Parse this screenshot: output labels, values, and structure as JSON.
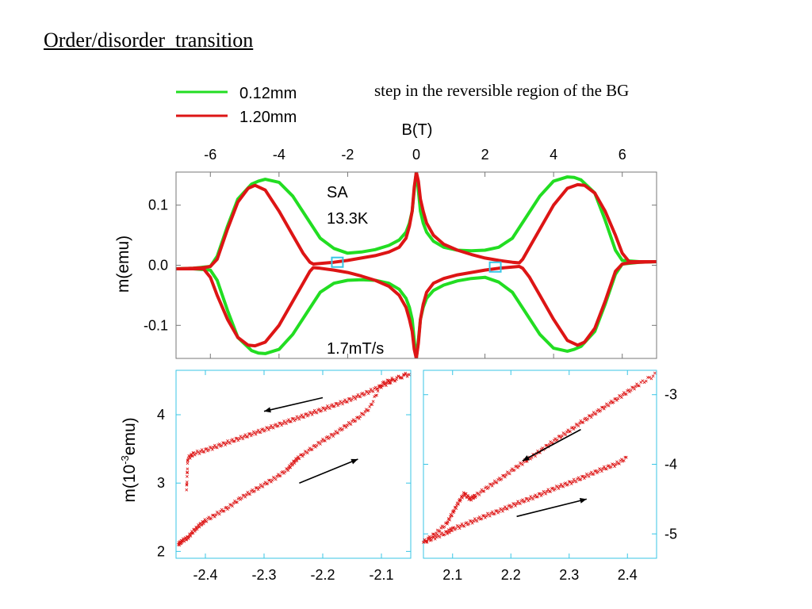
{
  "slide": {
    "title": "Order/disorder  transition",
    "note": "step in the reversible region of the BG"
  },
  "colors": {
    "green": "#22dd22",
    "red": "#dd1515",
    "cyan": "#38c6e6",
    "arrow": "#000000"
  },
  "chart_data": [
    {
      "type": "line",
      "xlabel": "B(T)",
      "ylabel": "m(emu)",
      "xlim": [
        -7.0,
        7.0
      ],
      "ylim": [
        -0.155,
        0.155
      ],
      "xticks": [
        "-6",
        "-4",
        "-2",
        "0",
        "2",
        "4",
        "6"
      ],
      "xtick_values": [
        -6,
        -4,
        -2,
        0,
        2,
        4,
        6
      ],
      "yticks": [
        "0.1",
        "0.0",
        "-0.1"
      ],
      "ytick_values": [
        0.1,
        0.0,
        -0.1
      ],
      "x_axis_position": "top",
      "annotations": [
        "SA",
        "13.3K",
        "1.7mT/s"
      ],
      "legend": {
        "placement": "top-left",
        "entries": [
          "0.12mm",
          "1.20mm"
        ]
      },
      "highlight_boxes": [
        {
          "x": -2.3,
          "y": 0.005
        },
        {
          "x": 2.3,
          "y": -0.003
        }
      ],
      "series": [
        {
          "name": "0.12mm",
          "color": "#22dd22",
          "upper": {
            "x": [
              -7.0,
              -6.5,
              -6.0,
              -5.8,
              -5.5,
              -5.2,
              -4.8,
              -4.6,
              -4.4,
              -4.0,
              -3.6,
              -3.2,
              -2.8,
              -2.4,
              -2.0,
              -1.6,
              -1.2,
              -0.8,
              -0.5,
              -0.3,
              -0.2,
              -0.12,
              -0.05,
              0.0
            ],
            "y": [
              -0.006,
              -0.005,
              -0.002,
              0.015,
              0.065,
              0.11,
              0.135,
              0.14,
              0.143,
              0.138,
              0.115,
              0.08,
              0.045,
              0.028,
              0.02,
              0.022,
              0.026,
              0.033,
              0.042,
              0.055,
              0.07,
              0.09,
              0.13,
              0.155
            ]
          },
          "lower": {
            "x": [
              -7.0,
              -6.5,
              -6.0,
              -5.8,
              -5.5,
              -5.2,
              -4.8,
              -4.6,
              -4.4,
              -4.0,
              -3.6,
              -3.2,
              -2.8,
              -2.4,
              -2.0,
              -1.6,
              -1.2,
              -0.8,
              -0.5,
              -0.3,
              -0.2,
              -0.12,
              -0.05,
              0.0
            ],
            "y": [
              -0.006,
              -0.006,
              -0.008,
              -0.025,
              -0.075,
              -0.12,
              -0.142,
              -0.146,
              -0.147,
              -0.14,
              -0.115,
              -0.08,
              -0.045,
              -0.03,
              -0.025,
              -0.024,
              -0.025,
              -0.03,
              -0.04,
              -0.055,
              -0.07,
              -0.09,
              -0.13,
              -0.155
            ]
          }
        },
        {
          "name": "1.20mm",
          "color": "#dd1515",
          "upper": {
            "x": [
              -7.0,
              -6.5,
              -6.2,
              -6.0,
              -5.8,
              -5.5,
              -5.2,
              -4.9,
              -4.7,
              -4.4,
              -4.0,
              -3.6,
              -3.3,
              -3.1,
              -3.0,
              -2.8,
              -2.4,
              -2.0,
              -1.6,
              -1.2,
              -0.8,
              -0.5,
              -0.3,
              -0.2,
              -0.12,
              -0.06,
              0.0
            ],
            "y": [
              -0.006,
              -0.005,
              -0.004,
              -0.002,
              0.01,
              0.06,
              0.105,
              0.128,
              0.133,
              0.125,
              0.09,
              0.05,
              0.02,
              0.005,
              0.002,
              0.003,
              0.005,
              0.008,
              0.012,
              0.016,
              0.022,
              0.03,
              0.045,
              0.065,
              0.09,
              0.13,
              0.155
            ]
          },
          "lower": {
            "x": [
              -7.0,
              -6.5,
              -6.2,
              -6.0,
              -5.8,
              -5.5,
              -5.2,
              -4.9,
              -4.7,
              -4.4,
              -4.0,
              -3.6,
              -3.3,
              -3.1,
              -3.0,
              -2.8,
              -2.4,
              -2.0,
              -1.6,
              -1.2,
              -0.8,
              -0.5,
              -0.3,
              -0.2,
              -0.12,
              -0.06,
              0.0
            ],
            "y": [
              -0.006,
              -0.006,
              -0.006,
              -0.02,
              -0.05,
              -0.09,
              -0.12,
              -0.133,
              -0.134,
              -0.128,
              -0.1,
              -0.06,
              -0.03,
              -0.01,
              -0.004,
              -0.005,
              -0.008,
              -0.012,
              -0.018,
              -0.025,
              -0.035,
              -0.05,
              -0.07,
              -0.09,
              -0.11,
              -0.14,
              -0.155
            ]
          }
        }
      ]
    },
    {
      "type": "scatter",
      "xlabel": "",
      "ylabel": "m(10-3emu)",
      "xlim": [
        -2.45,
        -2.05
      ],
      "ylim": [
        1.9,
        4.65
      ],
      "xticks": [
        "-2.4",
        "-2.3",
        "-2.2",
        "-2.1"
      ],
      "xtick_values": [
        -2.4,
        -2.3,
        -2.2,
        -2.1
      ],
      "yticks": [
        "4",
        "3",
        "2"
      ],
      "ytick_values": [
        4,
        3,
        2
      ],
      "y_axis_position": "left",
      "series": [
        {
          "name": "",
          "x": [
            -2.446,
            -2.44,
            -2.43,
            -2.42,
            -2.41,
            -2.4,
            -2.38,
            -2.36,
            -2.34,
            -2.32,
            -2.3,
            -2.28,
            -2.26,
            -2.25,
            -2.24,
            -2.22,
            -2.2,
            -2.18,
            -2.16,
            -2.14,
            -2.12,
            -2.1,
            -2.08,
            -2.05
          ],
          "y": [
            2.1,
            2.15,
            2.2,
            2.3,
            2.38,
            2.45,
            2.55,
            2.65,
            2.78,
            2.88,
            2.98,
            3.08,
            3.2,
            3.3,
            3.38,
            3.5,
            3.62,
            3.72,
            3.84,
            3.95,
            4.1,
            4.45,
            4.52,
            4.6
          ]
        },
        {
          "name": "",
          "x": [
            -2.432,
            -2.43,
            -2.42,
            -2.4,
            -2.38,
            -2.36,
            -2.34,
            -2.32,
            -2.3,
            -2.28,
            -2.26,
            -2.24,
            -2.22,
            -2.2,
            -2.18,
            -2.16,
            -2.14,
            -2.12,
            -2.1,
            -2.08,
            -2.05
          ],
          "y": [
            2.9,
            3.36,
            3.43,
            3.48,
            3.54,
            3.6,
            3.66,
            3.72,
            3.78,
            3.84,
            3.9,
            3.96,
            4.02,
            4.08,
            4.14,
            4.2,
            4.27,
            4.34,
            4.42,
            4.5,
            4.62
          ]
        }
      ],
      "arrows": [
        {
          "x1": -2.2,
          "y1": 4.25,
          "x2": -2.3,
          "y2": 4.05
        },
        {
          "x1": -2.24,
          "y1": 3.0,
          "x2": -2.14,
          "y2": 3.35
        }
      ]
    },
    {
      "type": "scatter",
      "xlabel": "",
      "ylabel": "",
      "xlim": [
        2.05,
        2.45
      ],
      "ylim": [
        -5.35,
        -2.65
      ],
      "xticks": [
        "2.1",
        "2.2",
        "2.3",
        "2.4"
      ],
      "xtick_values": [
        2.1,
        2.2,
        2.3,
        2.4
      ],
      "yticks": [
        "-3",
        "-4",
        "-5"
      ],
      "ytick_values": [
        -3,
        -4,
        -5
      ],
      "y_axis_position": "right",
      "series": [
        {
          "name": "",
          "x": [
            2.05,
            2.07,
            2.09,
            2.1,
            2.12,
            2.14,
            2.16,
            2.18,
            2.2,
            2.22,
            2.24,
            2.26,
            2.28,
            2.3,
            2.32,
            2.34,
            2.36,
            2.38,
            2.4
          ],
          "y": [
            -5.12,
            -5.05,
            -4.98,
            -4.93,
            -4.87,
            -4.8,
            -4.73,
            -4.67,
            -4.6,
            -4.53,
            -4.47,
            -4.4,
            -4.33,
            -4.27,
            -4.2,
            -4.13,
            -4.06,
            -4.0,
            -3.9
          ]
        },
        {
          "name": "",
          "x": [
            2.05,
            2.07,
            2.09,
            2.1,
            2.11,
            2.12,
            2.13,
            2.14,
            2.16,
            2.18,
            2.2,
            2.22,
            2.24,
            2.26,
            2.28,
            2.3,
            2.32,
            2.34,
            2.36,
            2.38,
            2.4,
            2.42,
            2.45
          ],
          "y": [
            -5.12,
            -5.0,
            -4.85,
            -4.7,
            -4.55,
            -4.42,
            -4.5,
            -4.45,
            -4.33,
            -4.22,
            -4.1,
            -3.98,
            -3.87,
            -3.75,
            -3.63,
            -3.52,
            -3.4,
            -3.29,
            -3.18,
            -3.07,
            -2.96,
            -2.85,
            -2.7
          ]
        }
      ],
      "arrows": [
        {
          "x1": 2.32,
          "y1": -3.5,
          "x2": 2.22,
          "y2": -3.95
        },
        {
          "x1": 2.21,
          "y1": -4.75,
          "x2": 2.33,
          "y2": -4.5
        }
      ]
    }
  ]
}
